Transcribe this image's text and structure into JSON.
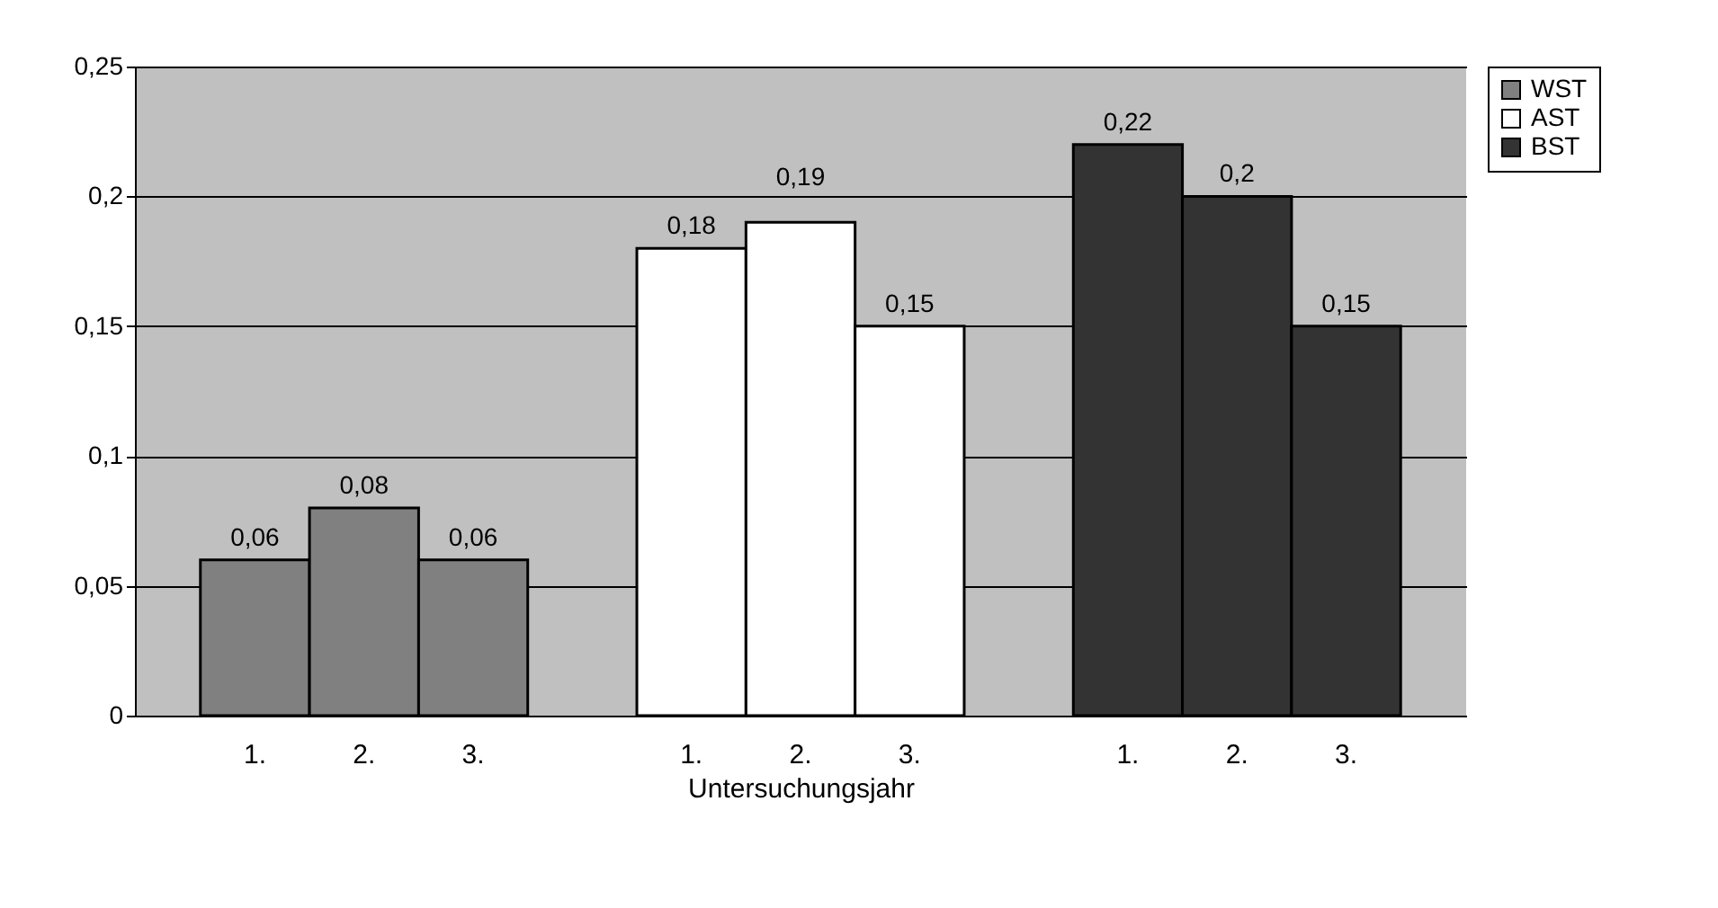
{
  "chart_data": {
    "type": "bar",
    "xlabel": "Untersuchungsjahr",
    "categories": [
      "1.",
      "2.",
      "3.",
      null,
      "1.",
      "2.",
      "3.",
      null,
      "1.",
      "2.",
      "3."
    ],
    "series": [
      {
        "name": "WST",
        "color": "#808080",
        "values": [
          0.06,
          0.08,
          0.06,
          null,
          null,
          null,
          null,
          null,
          null,
          null,
          null
        ],
        "value_labels": [
          "0,06",
          "0,08",
          "0,06",
          null,
          null,
          null,
          null,
          null,
          null,
          null,
          null
        ]
      },
      {
        "name": "AST",
        "color": "#ffffff",
        "values": [
          null,
          null,
          null,
          null,
          0.18,
          0.19,
          0.15,
          null,
          null,
          null,
          null
        ],
        "value_labels": [
          null,
          null,
          null,
          null,
          "0,18",
          "0,19",
          "0,15",
          null,
          null,
          null,
          null
        ]
      },
      {
        "name": "BST",
        "color": "#333333",
        "values": [
          null,
          null,
          null,
          null,
          null,
          null,
          null,
          null,
          0.22,
          0.2,
          0.15
        ],
        "value_labels": [
          null,
          null,
          null,
          null,
          null,
          null,
          null,
          null,
          "0,22",
          "0,2",
          "0,15"
        ]
      }
    ],
    "ylim": [
      0,
      0.25
    ],
    "yticks": [
      0,
      {
        "value": 0.05,
        "label": "0,05"
      },
      {
        "value": 0.1,
        "label": "0,1"
      },
      {
        "value": 0.15,
        "label": "0,15"
      },
      {
        "value": 0.2,
        "label": "0,2"
      },
      {
        "value": 0.25,
        "label": "0,25"
      }
    ],
    "grid": "y",
    "legend": "right",
    "data_labels": true
  }
}
